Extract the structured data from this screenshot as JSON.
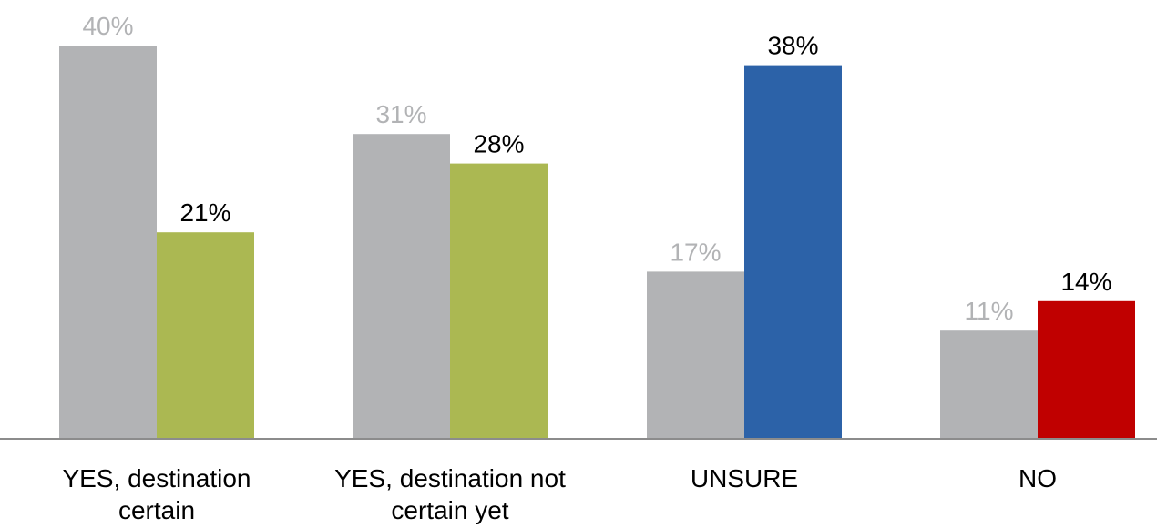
{
  "chart_data": {
    "type": "bar",
    "categories": [
      [
        "YES, destination",
        "certain"
      ],
      [
        "YES, destination not",
        "certain yet"
      ],
      [
        "UNSURE"
      ],
      [
        "NO"
      ]
    ],
    "series": [
      {
        "values": [
          40,
          31,
          17,
          11
        ],
        "labels": [
          "40%",
          "31%",
          "17%",
          "11%"
        ],
        "color": "#b2b3b5",
        "label_color": "#b2b3b5"
      },
      {
        "values": [
          21,
          28,
          38,
          14
        ],
        "labels": [
          "21%",
          "28%",
          "38%",
          "14%"
        ],
        "colors": [
          "#abb852",
          "#abb852",
          "#2c62a8",
          "#c00000"
        ],
        "label_color": "#000000"
      }
    ],
    "ylim": [
      0,
      44
    ],
    "grid": false,
    "legend": "none",
    "title": "",
    "xlabel": "",
    "ylabel": ""
  }
}
